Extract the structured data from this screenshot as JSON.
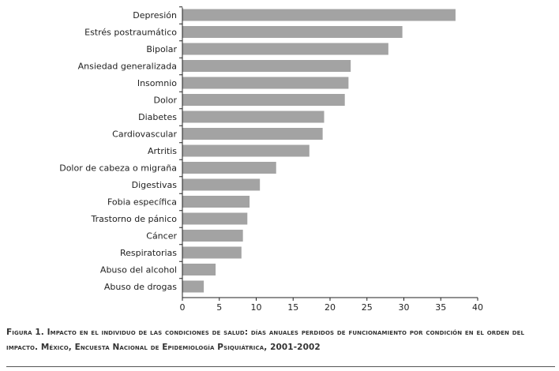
{
  "chart_data": {
    "type": "bar",
    "orientation": "horizontal",
    "title": "",
    "xlabel": "",
    "ylabel": "",
    "categories": [
      "Depresión",
      "Estrés postraumático",
      "Bipolar",
      "Ansiedad generalizada",
      "Insomnio",
      "Dolor",
      "Diabetes",
      "Cardiovascular",
      "Artritis",
      "Dolor de cabeza o migraña",
      "Digestivas",
      "Fobia específica",
      "Trastorno de pánico",
      "Cáncer",
      "Respiratorias",
      "Abuso del alcohol",
      "Abuso de drogas"
    ],
    "values": [
      37.0,
      29.8,
      27.9,
      22.8,
      22.5,
      22.0,
      19.2,
      19.0,
      17.2,
      12.7,
      10.5,
      9.1,
      8.8,
      8.2,
      8.0,
      4.5,
      2.9
    ],
    "xlim": [
      0,
      40
    ],
    "xticks": [
      "0",
      "5",
      "10",
      "15",
      "20",
      "25",
      "30",
      "35",
      "40"
    ],
    "grid": false,
    "bar_color": "#a3a3a3",
    "axis_color": "#222222"
  },
  "caption": {
    "text": "Figura 1. Impacto en el individuo de las condiciones de salud: días anuales perdidos de funcionamiento por condición en el orden del impacto. México, Encuesta Nacional de Epidemiología Psiquiátrica, 2001-2002"
  }
}
